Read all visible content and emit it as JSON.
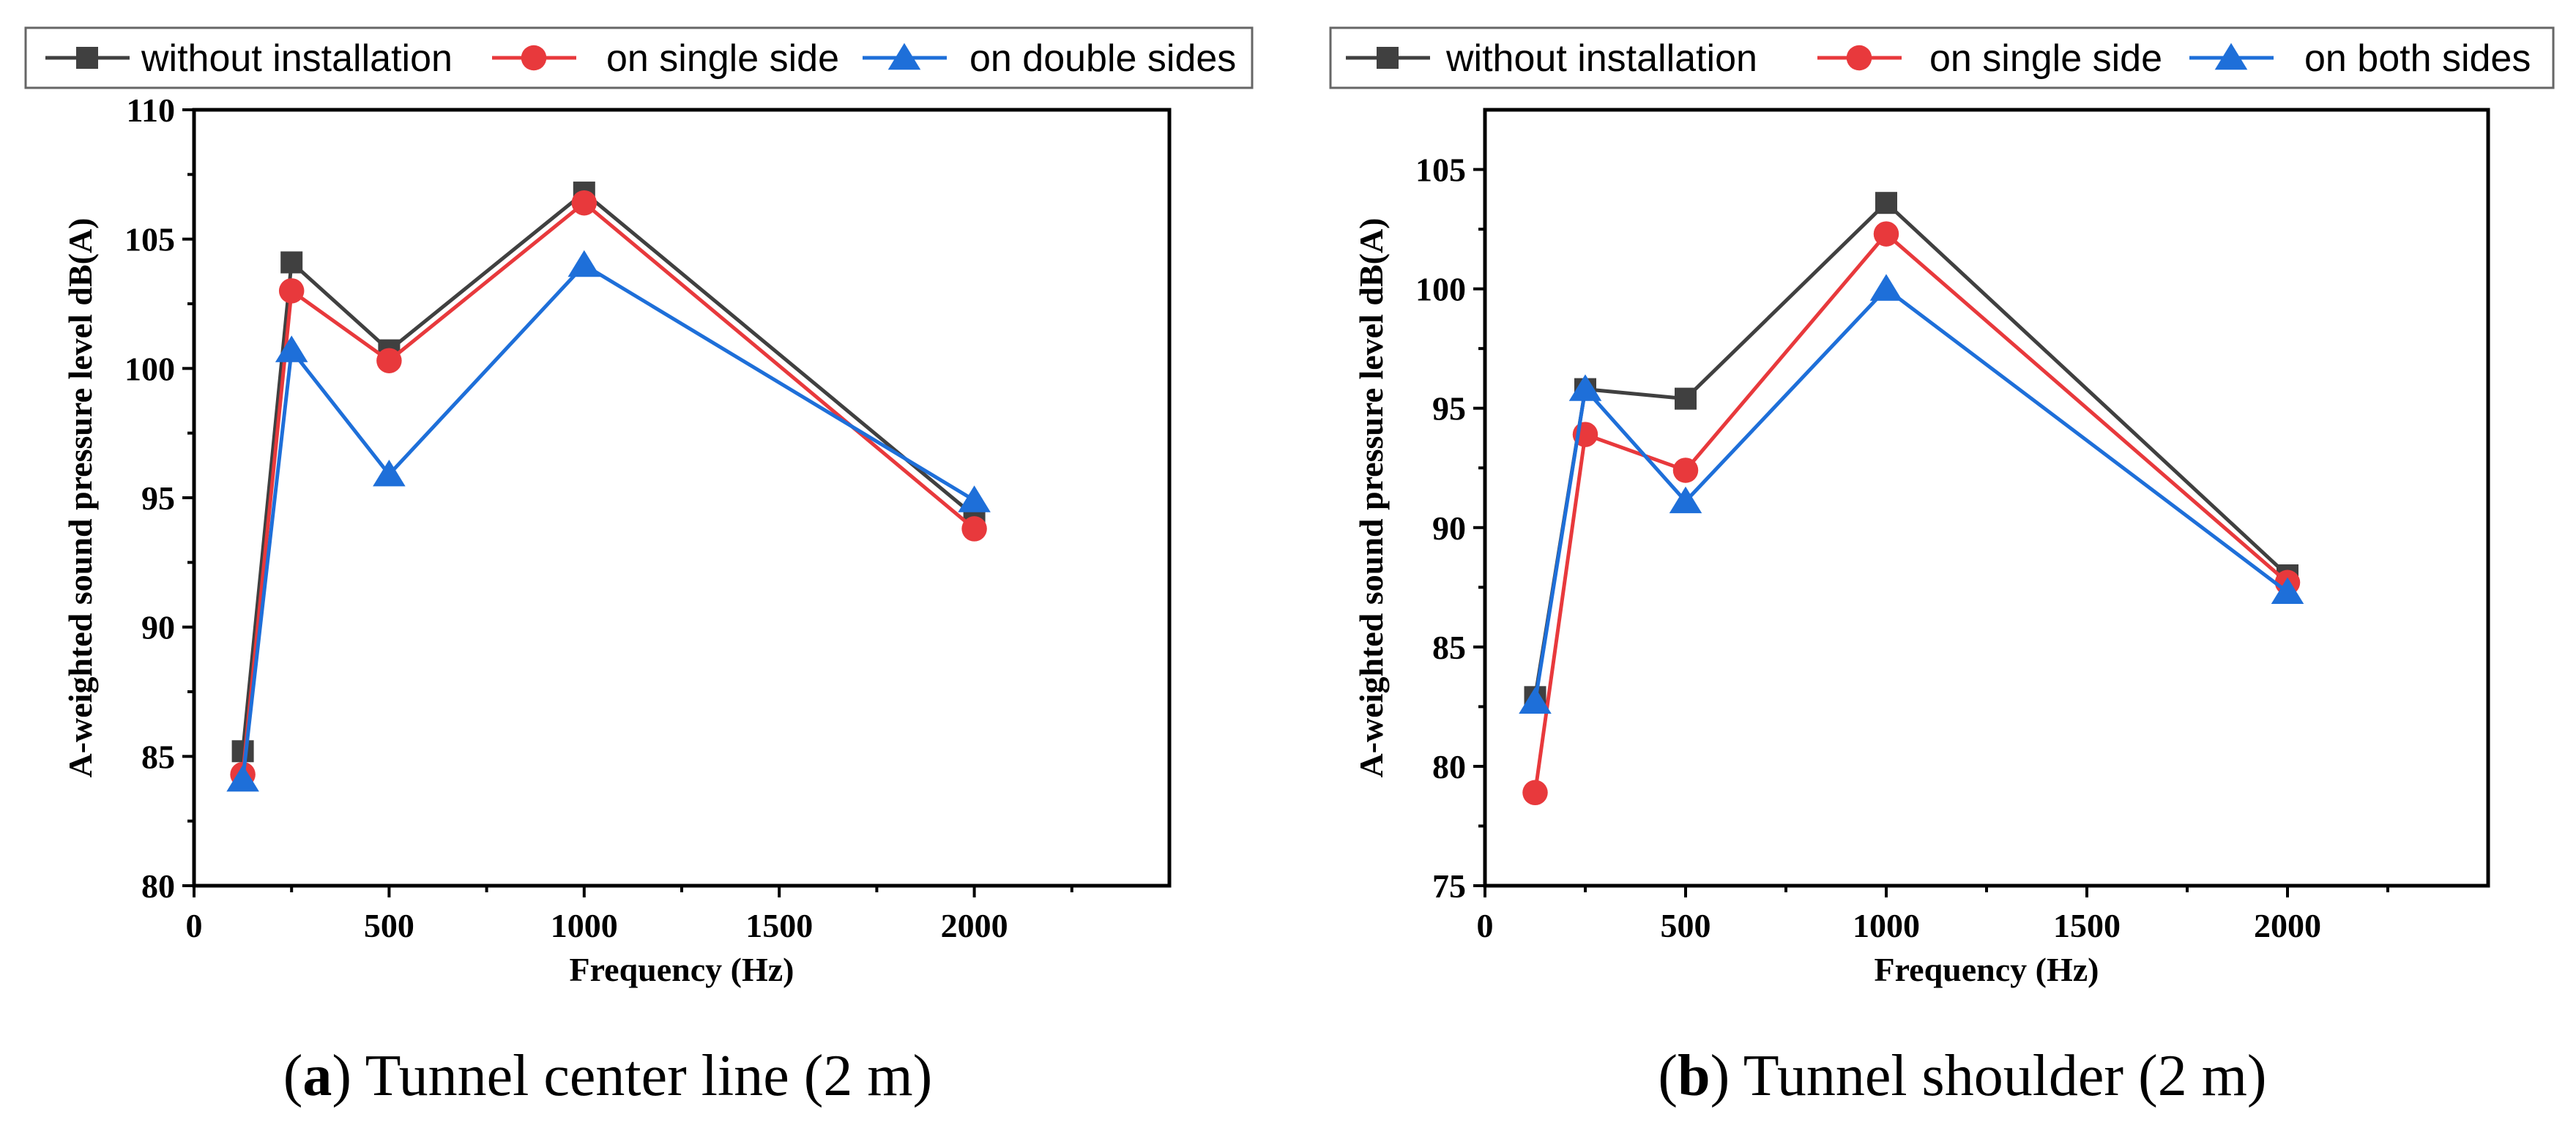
{
  "chart_data": [
    {
      "type": "line",
      "id": "a",
      "caption_letter": "a",
      "caption_text": "Tunnel center line (2 m)",
      "xlabel": "Frequency (Hz)",
      "ylabel": "A-weighted sound pressure level dB(A)",
      "xlim": [
        0,
        2500
      ],
      "ylim": [
        80,
        110
      ],
      "xticks": [
        0,
        500,
        1000,
        1500,
        2000
      ],
      "yticks": [
        80,
        85,
        90,
        95,
        100,
        105,
        110
      ],
      "x": [
        125,
        250,
        500,
        1000,
        2000
      ],
      "series": [
        {
          "name": "without installation",
          "color": "#404040",
          "marker": "square",
          "values": [
            85.2,
            104.1,
            100.7,
            106.8,
            94.3
          ]
        },
        {
          "name": "on single side",
          "color": "#e8393c",
          "marker": "circle",
          "values": [
            84.3,
            103.0,
            100.3,
            106.4,
            93.8
          ]
        },
        {
          "name": "on double sides",
          "color": "#1e6fd9",
          "marker": "triangle",
          "values": [
            84.1,
            100.7,
            95.9,
            104.0,
            94.9
          ]
        }
      ]
    },
    {
      "type": "line",
      "id": "b",
      "caption_letter": "b",
      "caption_text": "Tunnel shoulder (2 m)",
      "xlabel": "Frequency (Hz)",
      "ylabel": "A-weighted sound pressure level dB(A)",
      "xlim": [
        0,
        2500
      ],
      "ylim": [
        75,
        107.5
      ],
      "xticks": [
        0,
        500,
        1000,
        1500,
        2000
      ],
      "yticks": [
        75,
        80,
        85,
        90,
        95,
        100,
        105
      ],
      "x": [
        125,
        250,
        500,
        1000,
        2000
      ],
      "series": [
        {
          "name": "without installation",
          "color": "#404040",
          "marker": "square",
          "values": [
            82.9,
            95.8,
            95.4,
            103.6,
            88.0
          ]
        },
        {
          "name": "on single side",
          "color": "#e8393c",
          "marker": "circle",
          "values": [
            78.9,
            93.9,
            92.4,
            102.3,
            87.7
          ]
        },
        {
          "name": "on both sides",
          "color": "#1e6fd9",
          "marker": "triangle",
          "values": [
            82.7,
            95.8,
            91.1,
            100.0,
            87.3
          ]
        }
      ]
    }
  ]
}
